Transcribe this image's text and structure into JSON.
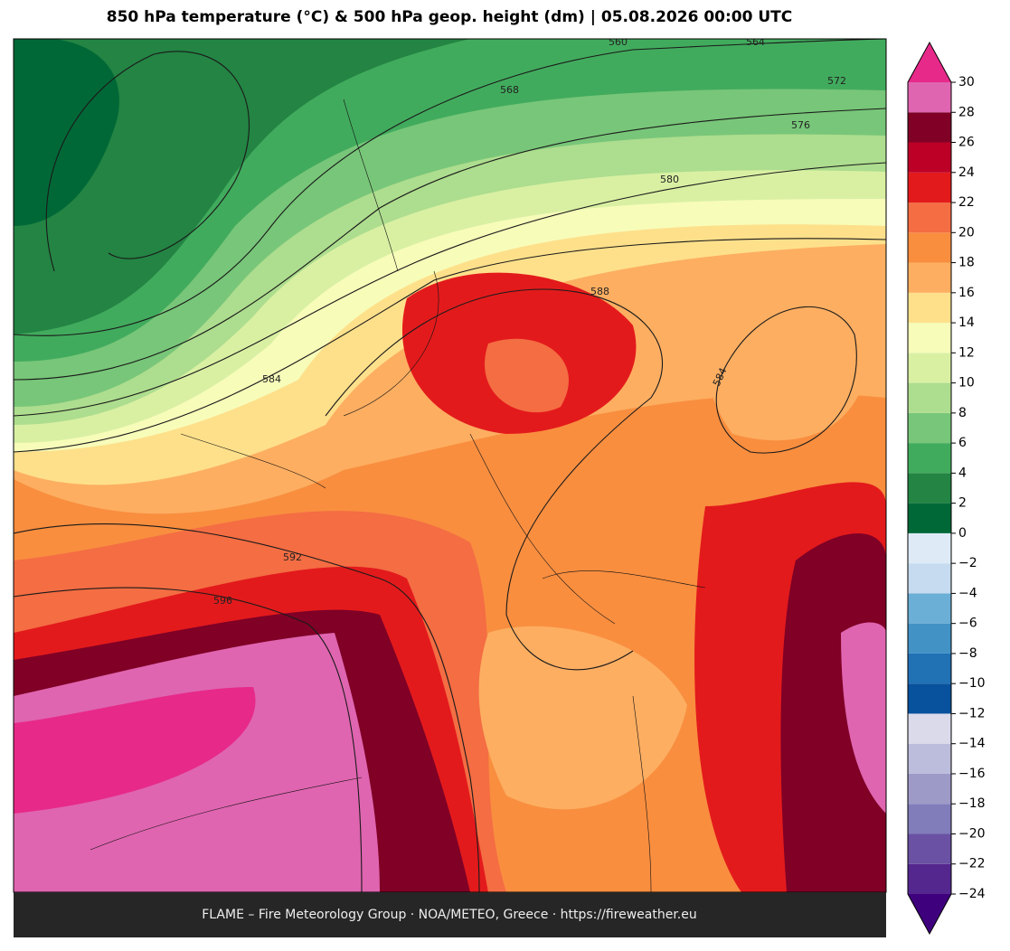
{
  "title": "850 hPa temperature (°C) & 500 hPa geop. height (dm)  |  05.08.2026 00:00 UTC",
  "footer": "FLAME – Fire Meteorology Group · NOA/METEO, Greece · https://fireweather.eu",
  "contour_labels": [
    560,
    564,
    568,
    572,
    576,
    580,
    584,
    588,
    592,
    596,
    584
  ],
  "colorbar": {
    "levels": [
      {
        "value": -24,
        "label": "−24"
      },
      {
        "value": -22,
        "label": "−22"
      },
      {
        "value": -20,
        "label": "−20"
      },
      {
        "value": -18,
        "label": "−18"
      },
      {
        "value": -16,
        "label": "−16"
      },
      {
        "value": -14,
        "label": "−14"
      },
      {
        "value": -12,
        "label": "−12"
      },
      {
        "value": -10,
        "label": "−10"
      },
      {
        "value": -8,
        "label": "−8"
      },
      {
        "value": -6,
        "label": "−6"
      },
      {
        "value": -4,
        "label": "−4"
      },
      {
        "value": -2,
        "label": "−2"
      },
      0,
      2,
      4,
      6,
      8,
      10,
      12,
      14,
      16,
      18,
      20,
      22,
      24,
      26,
      28,
      30
    ],
    "colors": [
      "#54278f",
      "#6a51a3",
      "#807dba",
      "#9e9ac8",
      "#bcbddc",
      "#dadaeb",
      "#08519c",
      "#2171b5",
      "#4292c6",
      "#6baed6",
      "#c6dbef",
      "#deebf7",
      "#006837",
      "#238443",
      "#41ab5d",
      "#78c679",
      "#addd8e",
      "#d9f0a3",
      "#f7fcb9",
      "#fee08b",
      "#fdae61",
      "#f98e3f",
      "#f46d43",
      "#e31a1c",
      "#bd0026",
      "#800026",
      "#df65b0"
    ],
    "under_color": "#3f007d",
    "over_color": "#e7298a"
  }
}
